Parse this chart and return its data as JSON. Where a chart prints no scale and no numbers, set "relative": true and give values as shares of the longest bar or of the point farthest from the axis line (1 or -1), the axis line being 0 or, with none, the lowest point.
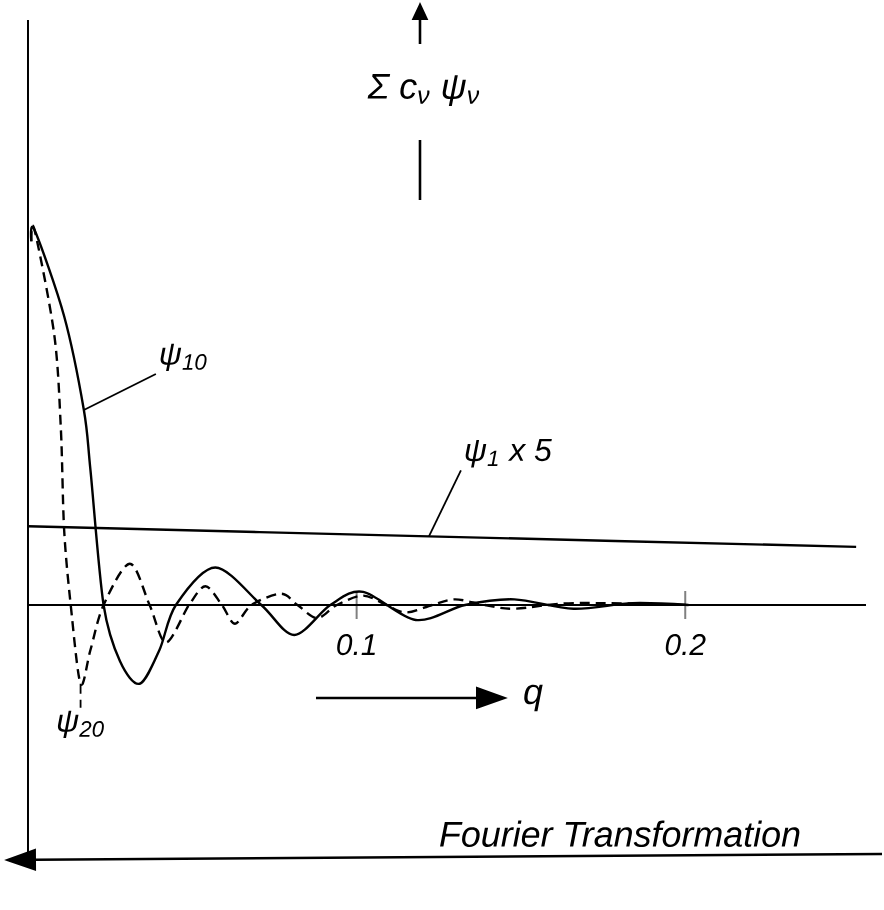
{
  "chart_data": {
    "type": "line",
    "relative": true,
    "ylabel": "Σ c$_{ν}$ ψ$_{ν}$",
    "xlabel": "q",
    "xlim": [
      0,
      0.255
    ],
    "xticks": [
      0.1,
      0.2
    ],
    "annotations": [
      "Fourier Transformation"
    ],
    "series": [
      {
        "name": "ψ$_{10}$",
        "color": "#000000",
        "line_style": "solid",
        "x": [
          0.001,
          0.002,
          0.011,
          0.017,
          0.019,
          0.023,
          0.028,
          0.034,
          0.04,
          0.045,
          0.057,
          0.071,
          0.081,
          0.092,
          0.102,
          0.118,
          0.133,
          0.148,
          0.166,
          0.184,
          0.201
        ],
        "values": [
          0.97,
          1.0,
          0.77,
          0.52,
          0.36,
          0,
          -0.15,
          -0.21,
          -0.12,
          0,
          0.1,
          0,
          -0.08,
          0,
          0.035,
          -0.04,
          0,
          0.015,
          -0.01,
          0.005,
          0
        ]
      },
      {
        "name": "ψ$_{20}$",
        "color": "#000000",
        "line_style": "dashed",
        "x": [
          0.001,
          0.002,
          0.008,
          0.01,
          0.011,
          0.013,
          0.016,
          0.019,
          0.023,
          0.031,
          0.037,
          0.042,
          0.049,
          0.054,
          0.059,
          0.063,
          0.068,
          0.077,
          0.082,
          0.088,
          0.094,
          0.102,
          0.109,
          0.115,
          0.123,
          0.13,
          0.139,
          0.148,
          0.166,
          0.201
        ],
        "values": [
          0.97,
          1.0,
          0.72,
          0.47,
          0.2,
          0,
          -0.21,
          -0.12,
          0,
          0.11,
          0,
          -0.1,
          0,
          0.05,
          0,
          -0.05,
          0,
          0.03,
          0,
          -0.035,
          0,
          0.025,
          0,
          -0.02,
          0,
          0.015,
          0,
          -0.01,
          0.005,
          0
        ]
      },
      {
        "name": "ψ$_{1}$ x 5",
        "color": "#000000",
        "line_style": "solid",
        "x": [
          0,
          0.122,
          0.252
        ],
        "values": [
          0.21,
          0.183,
          0.155
        ]
      }
    ]
  }
}
